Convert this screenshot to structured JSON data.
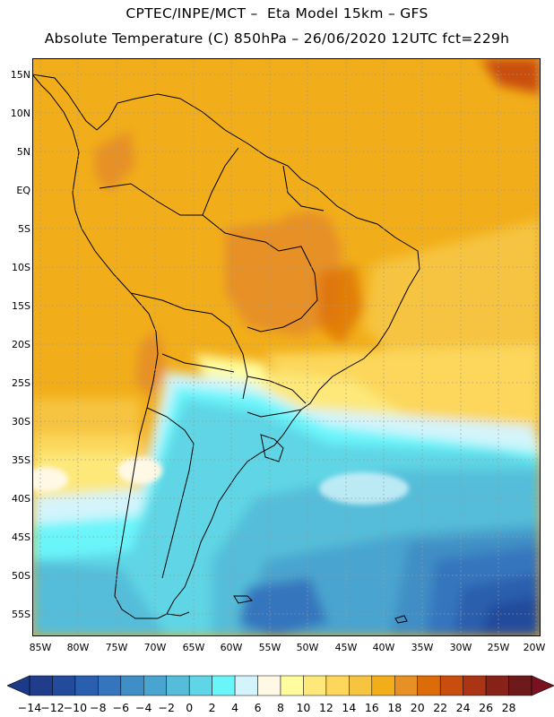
{
  "header": {
    "line1": "CPTEC/INPE/MCT –  Eta Model 15km – GFS",
    "line2": "Absolute Temperature (C) 850hPa – 26/06/2020 12UTC fct=229h"
  },
  "map": {
    "lat_labels": [
      "15N",
      "10N",
      "5N",
      "EQ",
      "5S",
      "10S",
      "15S",
      "20S",
      "25S",
      "30S",
      "35S",
      "40S",
      "45S",
      "50S",
      "55S"
    ],
    "lon_labels": [
      "85W",
      "80W",
      "75W",
      "70W",
      "65W",
      "60W",
      "55W",
      "50W",
      "45W",
      "40W",
      "35W",
      "30W",
      "25W",
      "20W"
    ],
    "grid": "dotted"
  },
  "colorbar": {
    "labels": [
      "-14",
      "-12",
      "-10",
      "-8",
      "-6",
      "-4",
      "-2",
      "0",
      "2",
      "4",
      "6",
      "8",
      "10",
      "12",
      "14",
      "16",
      "18",
      "20",
      "22",
      "24",
      "26",
      "28"
    ],
    "colors": [
      "#1f3d8a",
      "#234b9c",
      "#2a5eae",
      "#3475bd",
      "#3f8ec5",
      "#49a4cf",
      "#55bdd9",
      "#5fd5e5",
      "#6af5fb",
      "#d4f4fb",
      "#fff8e5",
      "#fffc9e",
      "#fde879",
      "#fcd75b",
      "#f6c43f",
      "#f2ae1a",
      "#e69025",
      "#dc6b09",
      "#c94d0c",
      "#aa3413",
      "#872218",
      "#6e1a1a"
    ],
    "under_color": "#1d3a89",
    "over_color": "#7a1120"
  }
}
